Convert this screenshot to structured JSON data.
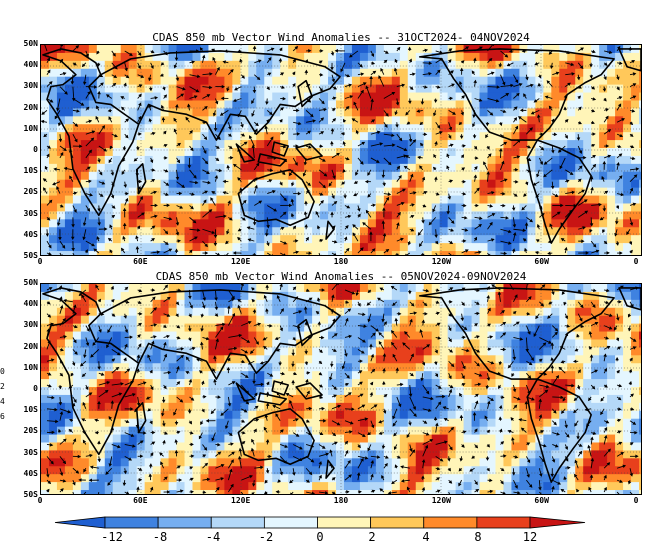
{
  "panels": [
    {
      "title": "CDAS 850 mb Vector Wind Anomalies -- 31OCT2024- 04NOV2024"
    },
    {
      "title": "CDAS 850 mb Vector Wind Anomalies -- 05NOV2024-09NOV2024"
    }
  ],
  "lat_labels": [
    "50N",
    "40N",
    "30N",
    "20N",
    "10N",
    "0",
    "10S",
    "20S",
    "30S",
    "40S",
    "50S"
  ],
  "lon_labels": [
    "0",
    "60E",
    "120E",
    "180",
    "120W",
    "60W",
    "0"
  ],
  "colorbar": {
    "labels": [
      "-12",
      "-8",
      "-4",
      "-2",
      "0",
      "2",
      "4",
      "8",
      "12"
    ],
    "colors": [
      "#1f5fd1",
      "#3f82e0",
      "#76aef0",
      "#b4d8f8",
      "#e4f6ff",
      "#fff5b8",
      "#ffc85a",
      "#ff8a2a",
      "#e8401c",
      "#c81414"
    ]
  },
  "side_fragments": [
    "0",
    "2",
    "4",
    "6"
  ]
}
